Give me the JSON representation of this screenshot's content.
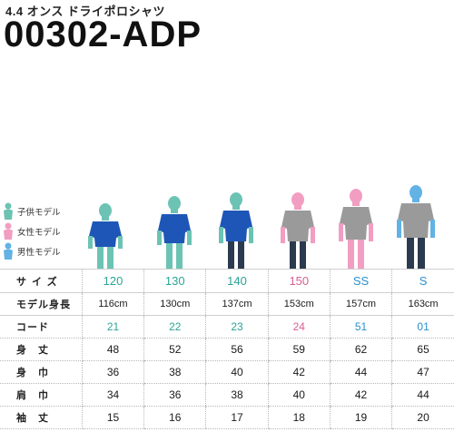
{
  "header": {
    "subtitle": "4.4 オンス ドライポロシャツ",
    "product_code": "00302-ADP"
  },
  "legend": [
    {
      "label": "子供モデル",
      "color": "#6cc3b4",
      "icon": "child-figure-icon"
    },
    {
      "label": "女性モデル",
      "color": "#f19ec2",
      "icon": "female-figure-icon"
    },
    {
      "label": "男性モデル",
      "color": "#63b2e6",
      "icon": "male-figure-icon"
    }
  ],
  "colors": {
    "child": "#6cc3b4",
    "female": "#f19ec2",
    "male": "#63b2e6",
    "shirt_blue": "#1e56b7",
    "shirt_gray": "#9a9a9a",
    "pants": "#2b3a4f"
  },
  "table": {
    "size_label": "サイズ",
    "sizes": [
      {
        "value": "120",
        "group": "child"
      },
      {
        "value": "130",
        "group": "child"
      },
      {
        "value": "140",
        "group": "child"
      },
      {
        "value": "150",
        "group": "female"
      },
      {
        "value": "SS",
        "group": "male"
      },
      {
        "value": "S",
        "group": "male"
      }
    ],
    "model_label": "モデル身長",
    "model_heights": [
      "116cm",
      "130cm",
      "137cm",
      "153cm",
      "157cm",
      "163cm"
    ],
    "code_label": "コード",
    "codes": [
      "21",
      "22",
      "23",
      "24",
      "51",
      "01"
    ],
    "rows": [
      {
        "label": "身　丈",
        "values": [
          "48",
          "52",
          "56",
          "59",
          "62",
          "65"
        ]
      },
      {
        "label": "身　巾",
        "values": [
          "36",
          "38",
          "40",
          "42",
          "44",
          "47"
        ]
      },
      {
        "label": "肩　巾",
        "values": [
          "34",
          "36",
          "38",
          "40",
          "42",
          "44"
        ]
      },
      {
        "label": "袖　丈",
        "values": [
          "15",
          "16",
          "17",
          "18",
          "19",
          "20"
        ]
      }
    ]
  }
}
